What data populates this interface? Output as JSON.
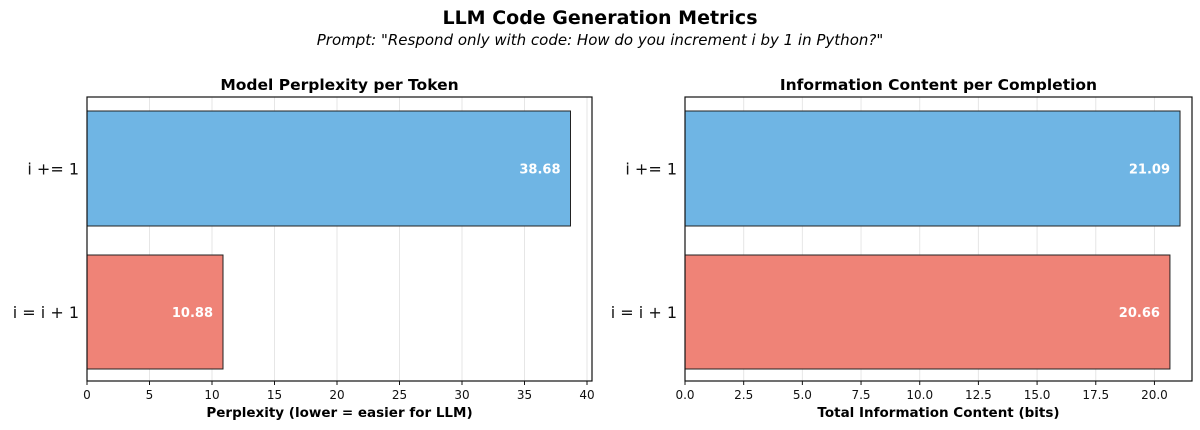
{
  "title": "LLM Code Generation Metrics",
  "subtitle": "Prompt: \"Respond only with code: How do you increment i by 1 in Python?\"",
  "chart_data": [
    {
      "type": "bar",
      "orientation": "horizontal",
      "title": "Model Perplexity per Token",
      "categories": [
        "i += 1",
        "i = i + 1"
      ],
      "values": [
        38.68,
        10.88
      ],
      "value_labels": [
        "38.68",
        "10.88"
      ],
      "colors": [
        "#6fb5e4",
        "#ef8377"
      ],
      "xlabel": "Perplexity (lower = easier for LLM)",
      "ylabel": "",
      "xlim": [
        0,
        40.4
      ],
      "xticks": [
        0,
        5,
        10,
        15,
        20,
        25,
        30,
        35,
        40
      ],
      "xtick_labels": [
        "0",
        "5",
        "10",
        "15",
        "20",
        "25",
        "30",
        "35",
        "40"
      ],
      "grid": "x"
    },
    {
      "type": "bar",
      "orientation": "horizontal",
      "title": "Information Content per Completion",
      "categories": [
        "i += 1",
        "i = i + 1"
      ],
      "values": [
        21.09,
        20.66
      ],
      "value_labels": [
        "21.09",
        "20.66"
      ],
      "colors": [
        "#6fb5e4",
        "#ef8377"
      ],
      "xlabel": "Total Information Content (bits)",
      "ylabel": "",
      "xlim": [
        0,
        21.6
      ],
      "xticks": [
        0,
        2.5,
        5,
        7.5,
        10,
        12.5,
        15,
        17.5,
        20
      ],
      "xtick_labels": [
        "0.0",
        "2.5",
        "5.0",
        "7.5",
        "10.0",
        "12.5",
        "15.0",
        "17.5",
        "20.0"
      ],
      "grid": "x"
    }
  ]
}
